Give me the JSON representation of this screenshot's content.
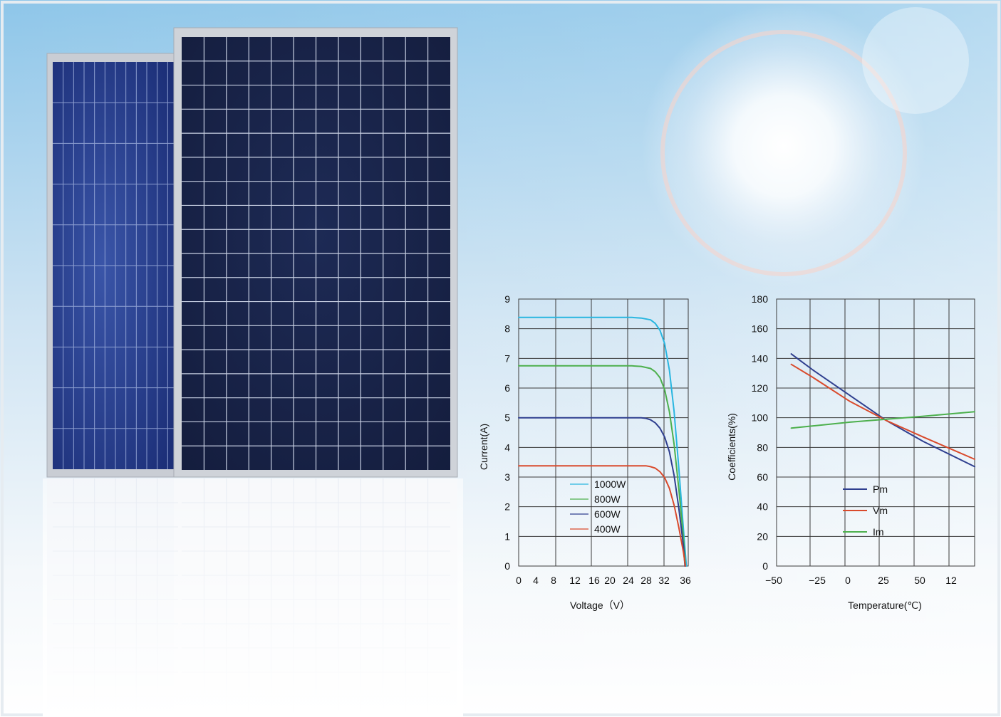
{
  "colors": {
    "sky_top": "#8cc4e8",
    "sky_bottom": "#ffffff",
    "panel_cell": "#1a2a5c",
    "panel_frame": "#c9ccd2",
    "grid_line": "#333333"
  },
  "chart_data": [
    {
      "type": "line",
      "title": "",
      "xlabel": "Voltage（V）",
      "ylabel": "Current(A)",
      "xlim": [
        0,
        36
      ],
      "ylim": [
        0,
        9
      ],
      "x_ticks": [
        "0",
        "4",
        "8",
        "12",
        "16",
        "20",
        "24",
        "28",
        "32",
        "36"
      ],
      "y_ticks": [
        "0",
        "1",
        "2",
        "3",
        "4",
        "5",
        "6",
        "7",
        "8",
        "9"
      ],
      "grid": true,
      "legend_position": "bottom-left",
      "series": [
        {
          "name": "1000W",
          "color": "#29b6e0",
          "x": [
            0,
            24,
            26,
            28,
            29,
            30,
            31,
            32,
            33,
            34,
            35,
            35.6
          ],
          "y": [
            8.38,
            8.38,
            8.36,
            8.3,
            8.18,
            7.95,
            7.5,
            6.6,
            5.2,
            3.3,
            1.2,
            0
          ]
        },
        {
          "name": "800W",
          "color": "#4db04d",
          "x": [
            0,
            24,
            26,
            28,
            29,
            30,
            31,
            32,
            33,
            34,
            35,
            35.4
          ],
          "y": [
            6.75,
            6.75,
            6.73,
            6.66,
            6.55,
            6.35,
            5.95,
            5.2,
            4.1,
            2.6,
            0.9,
            0
          ]
        },
        {
          "name": "600W",
          "color": "#2f3f8f",
          "x": [
            0,
            26,
            27,
            28,
            29,
            30,
            31,
            32,
            33,
            34,
            35,
            35.3
          ],
          "y": [
            5.0,
            5.0,
            4.98,
            4.93,
            4.83,
            4.65,
            4.35,
            3.85,
            3.05,
            1.95,
            0.65,
            0
          ]
        },
        {
          "name": "400W",
          "color": "#d94a2c",
          "x": [
            0,
            27,
            28,
            29,
            30,
            31,
            32,
            33,
            34,
            35,
            35.4
          ],
          "y": [
            3.38,
            3.38,
            3.35,
            3.3,
            3.18,
            2.98,
            2.62,
            2.05,
            1.3,
            0.45,
            0
          ]
        }
      ]
    },
    {
      "type": "line",
      "title": "",
      "xlabel": "Temperature(℃)",
      "ylabel": "Coefficients(%)",
      "ylim": [
        0,
        180
      ],
      "x_ticks": [
        "−50",
        "−25",
        "0",
        "25",
        "50",
        "12"
      ],
      "y_ticks": [
        "0",
        "20",
        "40",
        "60",
        "80",
        "100",
        "120",
        "140",
        "160",
        "180"
      ],
      "grid": true,
      "legend_position": "bottom-center",
      "series": [
        {
          "name": "Pm",
          "color": "#2f3f8f",
          "x": [
            -40,
            -25,
            0,
            25,
            50,
            85
          ],
          "y": [
            143,
            132,
            115,
            98,
            84,
            67
          ]
        },
        {
          "name": "Vm",
          "color": "#d94a2c",
          "x": [
            -40,
            -25,
            0,
            25,
            50,
            85
          ],
          "y": [
            136,
            127,
            111,
            98,
            87,
            72
          ]
        },
        {
          "name": "Im",
          "color": "#4db04d",
          "x": [
            -40,
            -25,
            0,
            25,
            50,
            85
          ],
          "y": [
            93,
            94.5,
            97,
            99,
            101,
            104
          ]
        }
      ]
    }
  ]
}
